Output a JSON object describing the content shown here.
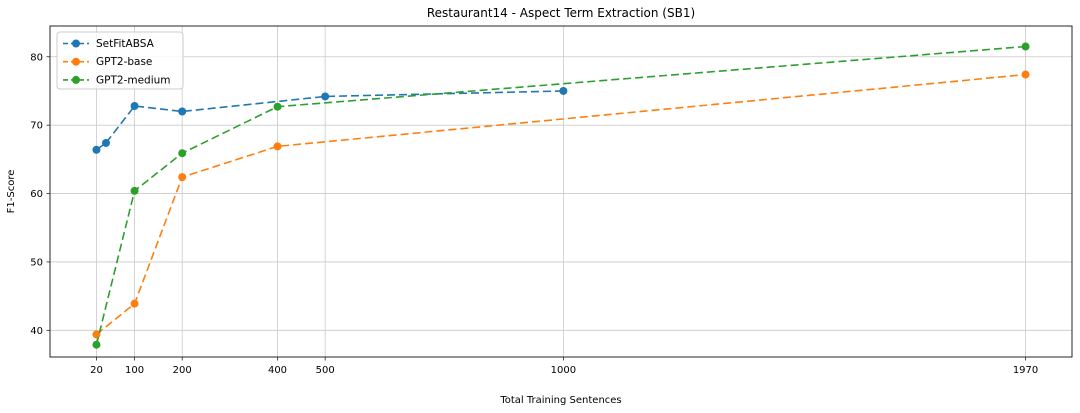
{
  "figure": {
    "kind": "matplotlib-line-chart",
    "background": "#ffffff"
  },
  "chart_data": {
    "type": "line",
    "title": "Restaurant14 - Aspect Term Extraction (SB1)",
    "xlabel": "Total Training Sentences",
    "ylabel": "F1-Score",
    "x_ticks": [
      20,
      100,
      200,
      400,
      500,
      1000,
      1970
    ],
    "y_ticks": [
      40,
      50,
      60,
      70,
      80
    ],
    "xlim": [
      -77.5,
      2067.5
    ],
    "ylim": [
      36.1,
      84.5
    ],
    "grid": true,
    "legend_position": "upper-left",
    "line_style": "dashed",
    "marker": "circle",
    "series": [
      {
        "name": "SetFitABSA",
        "color": "#1f77b4",
        "points": [
          [
            20,
            66.4
          ],
          [
            40,
            67.4
          ],
          [
            100,
            72.8
          ],
          [
            200,
            72.0
          ],
          [
            500,
            74.2
          ],
          [
            1000,
            75.0
          ]
        ]
      },
      {
        "name": "GPT2-base",
        "color": "#ff7f0e",
        "points": [
          [
            20,
            39.4
          ],
          [
            100,
            43.9
          ],
          [
            200,
            62.4
          ],
          [
            400,
            66.9
          ],
          [
            1970,
            77.4
          ]
        ]
      },
      {
        "name": "GPT2-medium",
        "color": "#2ca02c",
        "points": [
          [
            20,
            37.9
          ],
          [
            100,
            60.4
          ],
          [
            200,
            65.9
          ],
          [
            400,
            72.7
          ],
          [
            1970,
            81.5
          ]
        ]
      }
    ],
    "colors": {
      "grid": "#c9c9c9",
      "spine": "#262626",
      "legend_border": "#cccccc",
      "legend_bg": "#ffffff"
    }
  }
}
